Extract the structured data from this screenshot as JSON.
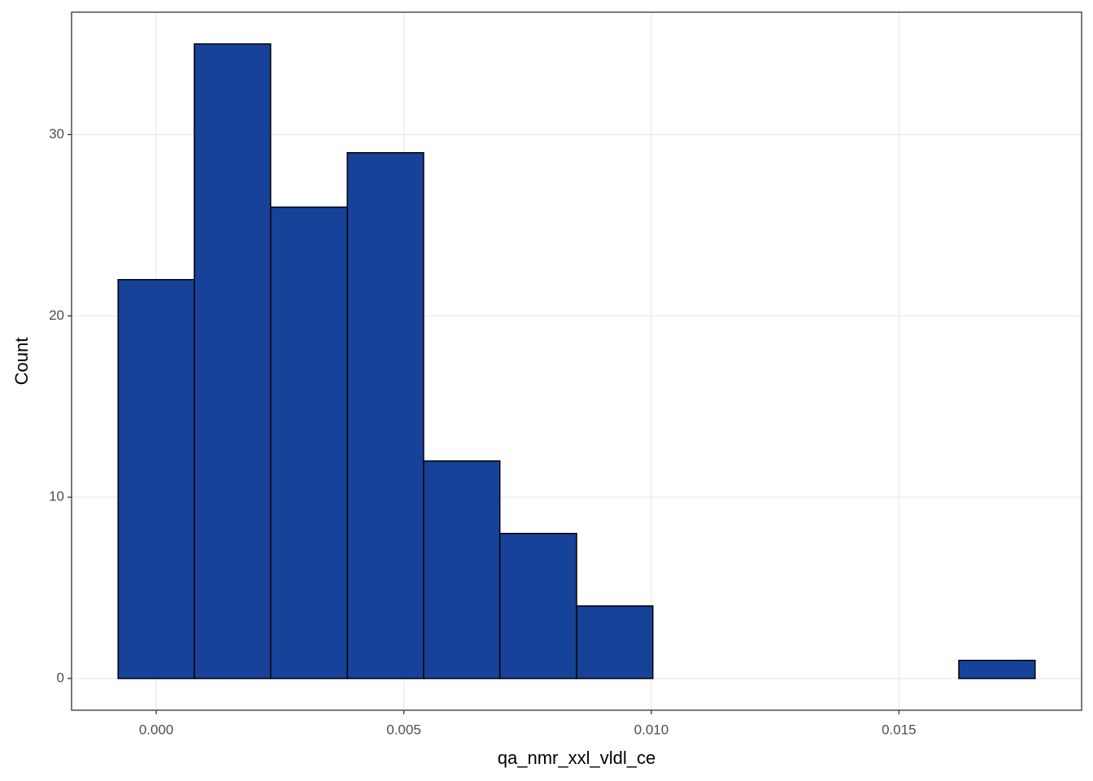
{
  "chart_data": {
    "type": "histogram",
    "x_label": "qa_nmr_xxl_vldl_ce",
    "y_label": "Count",
    "bins": [
      -0.00077,
      0.00077,
      0.00231,
      0.00386,
      0.0054,
      0.00694,
      0.00849,
      0.01003,
      0.01158,
      0.01312,
      0.01466,
      0.01621,
      0.01775
    ],
    "values": [
      22,
      35,
      26,
      29,
      12,
      8,
      4,
      0,
      0,
      0,
      0,
      1
    ],
    "color": "#17429a",
    "xlim": [
      -0.00171,
      0.01869
    ],
    "ylim": [
      -1.75,
      36.75
    ],
    "xticks": [
      {
        "value": 0,
        "label": "0.000"
      },
      {
        "value": 0.005,
        "label": "0.005"
      },
      {
        "value": 0.01,
        "label": "0.010"
      },
      {
        "value": 0.015,
        "label": "0.015"
      }
    ],
    "yticks": [
      0,
      10,
      20,
      30
    ],
    "grid": true
  }
}
